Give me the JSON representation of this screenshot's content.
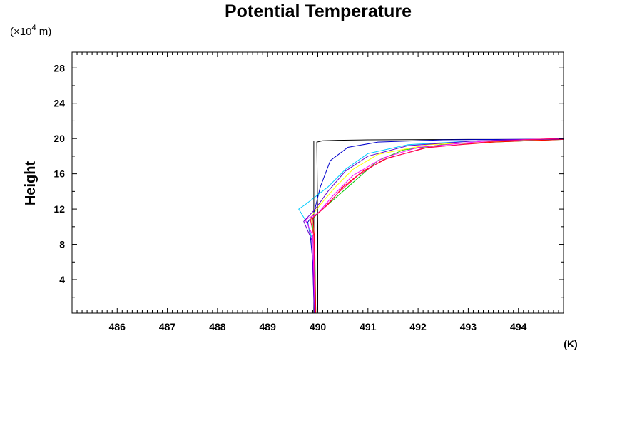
{
  "chart_data": {
    "type": "line",
    "title": "Potential Temperature",
    "ylabel": "Height",
    "y_unit_prefix": "(×10",
    "y_unit_exponent": "4",
    "y_unit_suffix": " m)",
    "x_unit": "(K)",
    "xlim": [
      485.1,
      494.9
    ],
    "ylim": [
      0.2,
      29.8
    ],
    "x_ticks": [
      486,
      487,
      488,
      489,
      490,
      491,
      492,
      493,
      494
    ],
    "x_tick_labels": [
      "486",
      "487",
      "488",
      "489",
      "490",
      "491",
      "492",
      "493",
      "494"
    ],
    "y_ticks": [
      4,
      8,
      12,
      16,
      20,
      24,
      28
    ],
    "y_tick_labels": [
      "4",
      "8",
      "12",
      "16",
      "20",
      "24",
      "28"
    ],
    "grid": false,
    "series": [
      {
        "color": "#000000",
        "points": [
          [
            490.0,
            0.2
          ],
          [
            490.0,
            10.0
          ],
          [
            489.98,
            19.6
          ],
          [
            490.1,
            19.75
          ],
          [
            490.4,
            19.8
          ],
          [
            491.0,
            19.85
          ],
          [
            493.0,
            19.9
          ],
          [
            494.9,
            19.9
          ]
        ]
      },
      {
        "color": "#000000",
        "points": [
          [
            489.92,
            0.2
          ],
          [
            489.92,
            19.7
          ]
        ]
      },
      {
        "color": "#0000cc",
        "points": [
          [
            489.93,
            0.2
          ],
          [
            489.9,
            6.0
          ],
          [
            489.85,
            9.0
          ],
          [
            489.8,
            10.5
          ],
          [
            489.92,
            11.5
          ],
          [
            490.05,
            14.5
          ],
          [
            490.25,
            17.5
          ],
          [
            490.6,
            19.0
          ],
          [
            491.2,
            19.6
          ],
          [
            492.5,
            19.85
          ],
          [
            494.9,
            19.95
          ]
        ]
      },
      {
        "color": "#00ccff",
        "points": [
          [
            489.93,
            0.2
          ],
          [
            489.92,
            8.0
          ],
          [
            489.8,
            10.3
          ],
          [
            489.62,
            12.0
          ],
          [
            489.75,
            12.5
          ],
          [
            490.2,
            14.5
          ],
          [
            490.55,
            16.5
          ],
          [
            491.0,
            18.3
          ],
          [
            491.8,
            19.3
          ],
          [
            493.0,
            19.7
          ],
          [
            494.9,
            19.9
          ]
        ]
      },
      {
        "color": "#00cc00",
        "points": [
          [
            489.96,
            0.2
          ],
          [
            489.94,
            8.0
          ],
          [
            489.88,
            10.8
          ],
          [
            490.05,
            11.8
          ],
          [
            490.3,
            13.0
          ],
          [
            490.6,
            14.5
          ],
          [
            490.9,
            16.0
          ],
          [
            491.2,
            17.5
          ],
          [
            491.7,
            18.7
          ],
          [
            492.6,
            19.4
          ],
          [
            494.9,
            19.9
          ]
        ]
      },
      {
        "color": "#ffff00",
        "points": [
          [
            489.95,
            0.2
          ],
          [
            489.92,
            9.0
          ],
          [
            489.85,
            11.0
          ],
          [
            490.05,
            12.5
          ],
          [
            490.35,
            14.5
          ],
          [
            490.7,
            16.5
          ],
          [
            491.2,
            18.2
          ],
          [
            492.2,
            19.3
          ],
          [
            494.9,
            19.95
          ]
        ]
      },
      {
        "color": "#ff0000",
        "points": [
          [
            489.96,
            0.2
          ],
          [
            489.93,
            9.0
          ],
          [
            489.9,
            11.0
          ],
          [
            490.2,
            12.5
          ],
          [
            490.5,
            14.5
          ],
          [
            490.9,
            16.3
          ],
          [
            491.4,
            17.8
          ],
          [
            492.2,
            19.0
          ],
          [
            493.5,
            19.6
          ],
          [
            494.9,
            19.9
          ]
        ]
      },
      {
        "color": "#ff00ff",
        "points": [
          [
            489.94,
            0.2
          ],
          [
            489.9,
            9.0
          ],
          [
            489.75,
            10.8
          ],
          [
            490.0,
            11.5
          ],
          [
            490.3,
            13.5
          ],
          [
            490.7,
            15.8
          ],
          [
            491.3,
            17.8
          ],
          [
            492.0,
            19.0
          ],
          [
            493.5,
            19.8
          ],
          [
            494.9,
            20.0
          ]
        ]
      },
      {
        "color": "#6600cc",
        "points": [
          [
            489.93,
            0.2
          ],
          [
            489.88,
            8.5
          ],
          [
            489.72,
            10.6
          ],
          [
            489.95,
            12.0
          ],
          [
            490.2,
            14.0
          ],
          [
            490.55,
            16.3
          ],
          [
            491.0,
            18.0
          ],
          [
            491.8,
            19.2
          ],
          [
            493.2,
            19.75
          ],
          [
            494.9,
            19.95
          ]
        ]
      },
      {
        "color": "#ff0066",
        "points": [
          [
            489.95,
            0.2
          ],
          [
            489.92,
            9.0
          ],
          [
            489.85,
            10.8
          ],
          [
            490.1,
            12.0
          ],
          [
            490.4,
            13.8
          ],
          [
            490.8,
            15.8
          ],
          [
            491.3,
            17.6
          ],
          [
            492.1,
            18.9
          ],
          [
            493.5,
            19.7
          ],
          [
            494.9,
            20.05
          ]
        ]
      }
    ]
  }
}
